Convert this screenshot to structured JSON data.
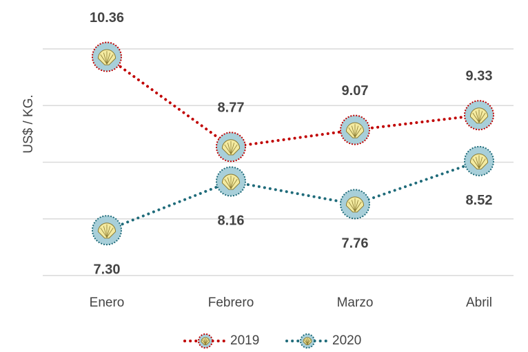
{
  "chart_data": {
    "type": "line",
    "ylabel": "US$ / KG.",
    "categories": [
      "Enero",
      "Febrero",
      "Marzo",
      "Abril"
    ],
    "series": [
      {
        "name": "2019",
        "color": "#c00000",
        "values": [
          10.36,
          8.77,
          9.07,
          9.33
        ]
      },
      {
        "name": "2020",
        "color": "#1f6b7a",
        "values": [
          7.3,
          8.16,
          7.76,
          8.52
        ],
        "value_labels": [
          "7.30",
          "8.16",
          "7.76",
          "8.52"
        ]
      }
    ],
    "ylim": [
      6.5,
      10.5
    ],
    "yticks": [
      6.5,
      7.5,
      8.5,
      9.5,
      10.5
    ],
    "grid": true
  }
}
